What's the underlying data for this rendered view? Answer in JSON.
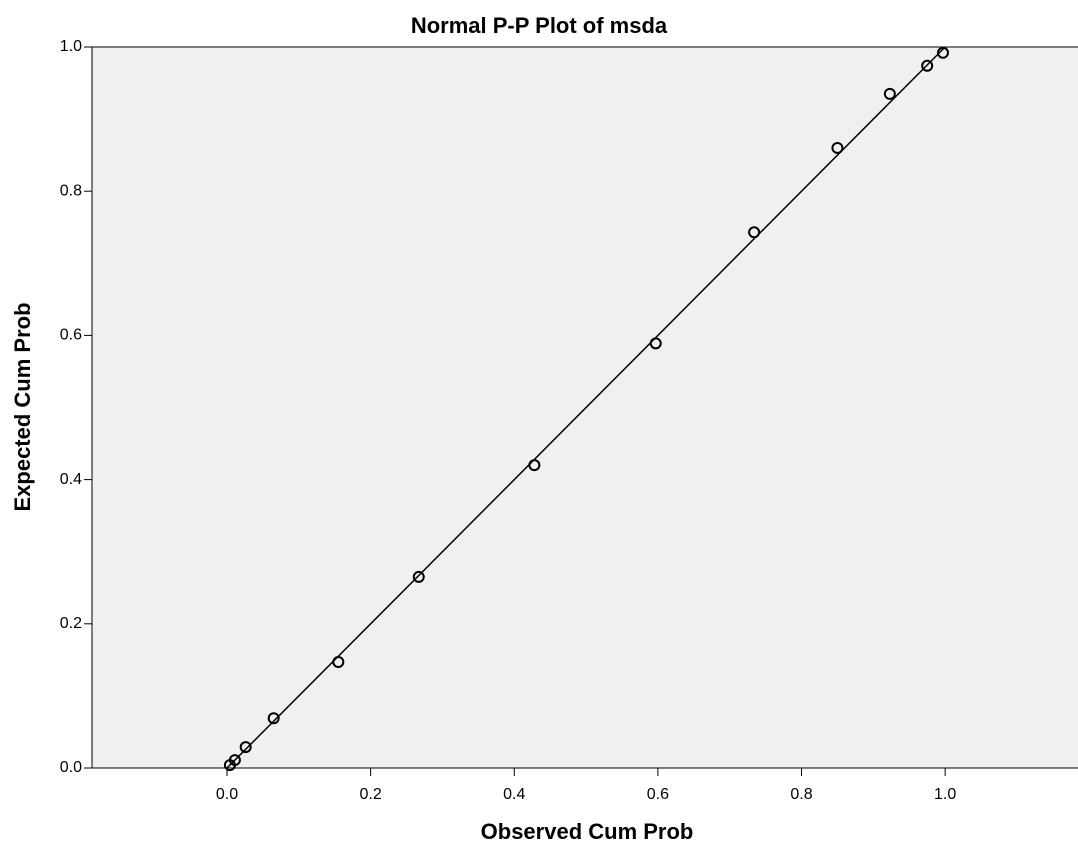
{
  "chart_data": {
    "type": "scatter",
    "title": "Normal P-P Plot of msda",
    "x_label": "Observed Cum Prob",
    "y_label": "Expected Cum Prob",
    "xlim": [
      -0.188,
      1.185
    ],
    "ylim": [
      0,
      1
    ],
    "xticks": [
      {
        "value": 0,
        "label": "0.0"
      },
      {
        "value": 0.2,
        "label": "0.2"
      },
      {
        "value": 0.4,
        "label": "0.4"
      },
      {
        "value": 0.6,
        "label": "0.6"
      },
      {
        "value": 0.8,
        "label": "0.8"
      },
      {
        "value": 1,
        "label": "1.0"
      }
    ],
    "yticks": [
      {
        "value": 0,
        "label": "0.0"
      },
      {
        "value": 0.2,
        "label": "0.2"
      },
      {
        "value": 0.4,
        "label": "0.4"
      },
      {
        "value": 0.6,
        "label": "0.6"
      },
      {
        "value": 0.8,
        "label": "0.8"
      },
      {
        "value": 1,
        "label": "1.0"
      }
    ],
    "x": [
      0.004,
      0.011,
      0.026,
      0.065,
      0.155,
      0.267,
      0.428,
      0.597,
      0.734,
      0.85,
      0.923,
      0.975,
      0.997
    ],
    "values": [
      0.004,
      0.011,
      0.029,
      0.069,
      0.147,
      0.265,
      0.42,
      0.589,
      0.743,
      0.86,
      0.935,
      0.974,
      0.992
    ],
    "color": "#000000",
    "reference_line": {
      "x": [
        0,
        1
      ],
      "y": [
        0,
        1
      ]
    },
    "background": "#f0f0f0"
  }
}
